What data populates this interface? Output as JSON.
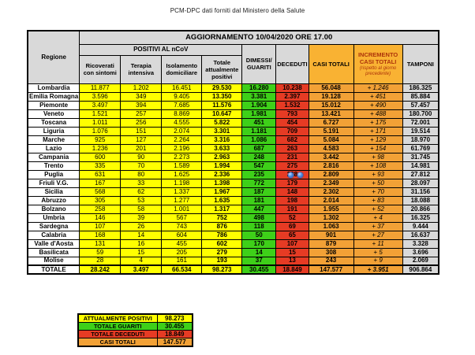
{
  "page_title": "PCM-DPC dati forniti dal Ministero della Salute",
  "colors": {
    "yellow": "#ffff00",
    "green": "#3ed019",
    "red": "#e63b24",
    "orange_cell": "#f2a136",
    "orange_header": "#f9b233",
    "grey": "#d9d9d9",
    "increment_text": "#ad330a"
  },
  "main_table": {
    "banner": "AGGIORNAMENTO 10/04/2020 ORE 17.00",
    "region_header": "Regione",
    "positivi_group": "POSITIVI AL nCoV",
    "sub_columns": [
      "Ricoverati con sintomi",
      "Terapia intensiva",
      "Isolamento domiciliare",
      "Totale attualmente positivi"
    ],
    "col_dimessi": "DIMESSI/ GUARITI",
    "col_deceduti": "DECEDUTI",
    "col_casi": "CASI TOTALI",
    "col_incremento": "INCREMENTO CASI TOTALI",
    "col_incremento_note": "(rispetto al giorno precedente)",
    "col_tamponi": "TAMPONI",
    "annotations": {
      "marker_icon": "blue-dot-icon",
      "marker_location": "Puglia DECEDUTI cell",
      "marker_count": 2
    },
    "rows": [
      {
        "regione": "Lombardia",
        "values": [
          "11.877",
          "1.202",
          "16.451",
          "29.530",
          "16.280",
          "10.238",
          "56.048",
          "+ 1.246",
          "186.325"
        ]
      },
      {
        "regione": "Emilia Romagna",
        "values": [
          "3.596",
          "349",
          "9.405",
          "13.350",
          "3.381",
          "2.397",
          "19.128",
          "+ 451",
          "85.884"
        ]
      },
      {
        "regione": "Piemonte",
        "values": [
          "3.497",
          "394",
          "7.685",
          "11.576",
          "1.904",
          "1.532",
          "15.012",
          "+ 490",
          "57.457"
        ]
      },
      {
        "regione": "Veneto",
        "values": [
          "1.521",
          "257",
          "8.869",
          "10.647",
          "1.981",
          "793",
          "13.421",
          "+ 488",
          "180.700"
        ]
      },
      {
        "regione": "Toscana",
        "values": [
          "1.011",
          "256",
          "4.555",
          "5.822",
          "451",
          "454",
          "6.727",
          "+ 175",
          "72.001"
        ]
      },
      {
        "regione": "Liguria",
        "values": [
          "1.076",
          "151",
          "2.074",
          "3.301",
          "1.181",
          "709",
          "5.191",
          "+ 171",
          "19.514"
        ]
      },
      {
        "regione": "Marche",
        "values": [
          "925",
          "127",
          "2.264",
          "3.316",
          "1.086",
          "682",
          "5.084",
          "+ 129",
          "18.970"
        ]
      },
      {
        "regione": "Lazio",
        "values": [
          "1.236",
          "201",
          "2.196",
          "3.633",
          "687",
          "263",
          "4.583",
          "+ 154",
          "61.769"
        ]
      },
      {
        "regione": "Campania",
        "values": [
          "600",
          "90",
          "2.273",
          "2.963",
          "248",
          "231",
          "3.442",
          "+ 98",
          "31.745"
        ]
      },
      {
        "regione": "Trento",
        "values": [
          "335",
          "70",
          "1.589",
          "1.994",
          "547",
          "275",
          "2.816",
          "+ 108",
          "14.981"
        ]
      },
      {
        "regione": "Puglia",
        "values": [
          "631",
          "80",
          "1.625",
          "2.336",
          "235",
          "238",
          "2.809",
          "+ 93",
          "27.812"
        ],
        "marker_dots": true
      },
      {
        "regione": "Friuli V.G.",
        "values": [
          "167",
          "33",
          "1.198",
          "1.398",
          "772",
          "179",
          "2.349",
          "+ 50",
          "28.097"
        ]
      },
      {
        "regione": "Sicilia",
        "values": [
          "568",
          "62",
          "1.337",
          "1.967",
          "187",
          "148",
          "2.302",
          "+ 70",
          "31.156"
        ]
      },
      {
        "regione": "Abruzzo",
        "values": [
          "305",
          "53",
          "1.277",
          "1.635",
          "181",
          "198",
          "2.014",
          "+ 83",
          "18.088"
        ]
      },
      {
        "regione": "Bolzano",
        "values": [
          "258",
          "58",
          "1.001",
          "1.317",
          "447",
          "191",
          "1.955",
          "+ 52",
          "20.866"
        ]
      },
      {
        "regione": "Umbria",
        "values": [
          "146",
          "39",
          "567",
          "752",
          "498",
          "52",
          "1.302",
          "+ 4",
          "16.325"
        ]
      },
      {
        "regione": "Sardegna",
        "values": [
          "107",
          "26",
          "743",
          "876",
          "118",
          "69",
          "1.063",
          "+ 37",
          "9.444"
        ]
      },
      {
        "regione": "Calabria",
        "values": [
          "168",
          "14",
          "604",
          "786",
          "50",
          "65",
          "901",
          "+ 27",
          "16.637"
        ]
      },
      {
        "regione": "Valle d'Aosta",
        "values": [
          "131",
          "16",
          "455",
          "602",
          "170",
          "107",
          "879",
          "+ 11",
          "3.328"
        ]
      },
      {
        "regione": "Basilicata",
        "values": [
          "59",
          "15",
          "205",
          "279",
          "14",
          "15",
          "308",
          "+ 5",
          "3.696"
        ]
      },
      {
        "regione": "Molise",
        "values": [
          "28",
          "4",
          "161",
          "193",
          "37",
          "13",
          "243",
          "+ 9",
          "2.069"
        ]
      }
    ],
    "total_row": {
      "regione": "TOTALE",
      "values": [
        "28.242",
        "3.497",
        "66.534",
        "98.273",
        "30.455",
        "18.849",
        "147.577",
        "+ 3.951",
        "906.864"
      ]
    }
  },
  "summary_table": {
    "rows": [
      {
        "label": "ATTUALMENTE POSITIVI",
        "value": "98.273",
        "color": "yellow"
      },
      {
        "label": "TOTALE GUARITI",
        "value": "30.455",
        "color": "green"
      },
      {
        "label": "TOTALE DECEDUTI",
        "value": "18.849",
        "color": "red"
      },
      {
        "label": "CASI TOTALI",
        "value": "147.577",
        "color": "orange"
      }
    ]
  }
}
